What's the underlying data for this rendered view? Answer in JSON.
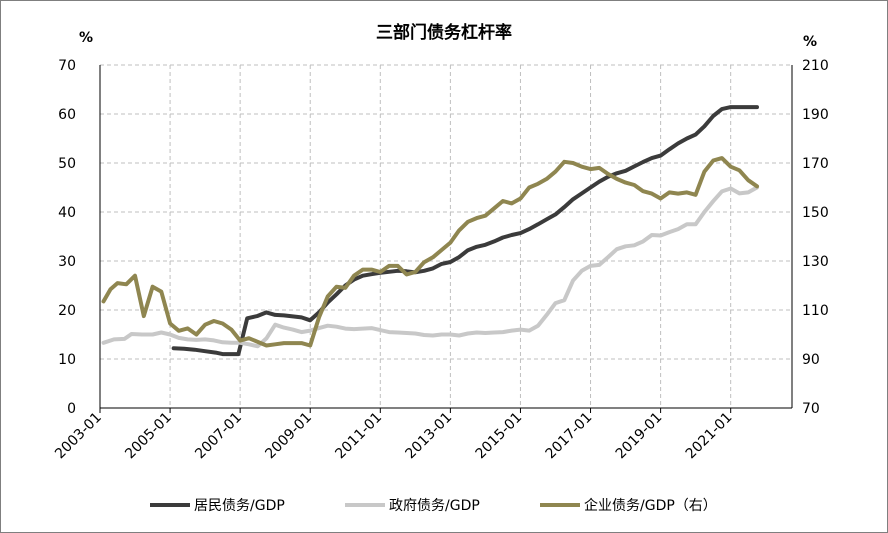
{
  "chart_data": {
    "type": "line",
    "title": "三部门债务杠杆率",
    "y_left_unit": "%",
    "y_right_unit": "%",
    "y_left_lim": [
      0,
      70
    ],
    "y_left_ticks": [
      "0",
      "10",
      "20",
      "30",
      "40",
      "50",
      "60",
      "70"
    ],
    "y_right_lim": [
      70,
      210
    ],
    "y_right_ticks": [
      "70",
      "90",
      "110",
      "130",
      "150",
      "170",
      "190",
      "210"
    ],
    "x_lim": [
      2003.0,
      2022.75
    ],
    "x_ticks": [
      {
        "value": 2003.0,
        "label": "2003-01"
      },
      {
        "value": 2005.0,
        "label": "2005-01"
      },
      {
        "value": 2007.0,
        "label": "2007-01"
      },
      {
        "value": 2009.0,
        "label": "2009-01"
      },
      {
        "value": 2011.0,
        "label": "2011-01"
      },
      {
        "value": 2013.0,
        "label": "2013-01"
      },
      {
        "value": 2015.0,
        "label": "2015-01"
      },
      {
        "value": 2017.0,
        "label": "2017-01"
      },
      {
        "value": 2019.0,
        "label": "2019-01"
      },
      {
        "value": 2021.0,
        "label": "2021-01"
      }
    ],
    "grid": true,
    "legend_position": "bottom",
    "series": [
      {
        "name": "居民债务/GDP",
        "axis": "left",
        "color": "#3b3b3b",
        "width": 4,
        "points": [
          [
            2005.1,
            12.2
          ],
          [
            2005.4,
            12.1
          ],
          [
            2005.7,
            11.9
          ],
          [
            2006.0,
            11.6
          ],
          [
            2006.3,
            11.3
          ],
          [
            2006.5,
            11.0
          ],
          [
            2006.8,
            11.0
          ],
          [
            2006.95,
            11.0
          ],
          [
            2007.2,
            18.3
          ],
          [
            2007.5,
            18.8
          ],
          [
            2007.75,
            19.5
          ],
          [
            2008.0,
            19.0
          ],
          [
            2008.25,
            18.9
          ],
          [
            2008.5,
            18.7
          ],
          [
            2008.75,
            18.5
          ],
          [
            2009.0,
            17.9
          ],
          [
            2009.25,
            19.5
          ],
          [
            2009.5,
            21.5
          ],
          [
            2009.75,
            23.2
          ],
          [
            2010.0,
            25.0
          ],
          [
            2010.25,
            26.2
          ],
          [
            2010.5,
            27.0
          ],
          [
            2010.75,
            27.3
          ],
          [
            2011.0,
            27.6
          ],
          [
            2011.25,
            27.8
          ],
          [
            2011.5,
            28.0
          ],
          [
            2011.75,
            27.9
          ],
          [
            2012.0,
            27.7
          ],
          [
            2012.25,
            28.0
          ],
          [
            2012.5,
            28.5
          ],
          [
            2012.75,
            29.4
          ],
          [
            2013.0,
            29.8
          ],
          [
            2013.25,
            30.8
          ],
          [
            2013.5,
            32.2
          ],
          [
            2013.75,
            32.9
          ],
          [
            2014.0,
            33.3
          ],
          [
            2014.25,
            34.0
          ],
          [
            2014.5,
            34.8
          ],
          [
            2014.75,
            35.3
          ],
          [
            2015.0,
            35.7
          ],
          [
            2015.25,
            36.5
          ],
          [
            2015.5,
            37.5
          ],
          [
            2015.75,
            38.5
          ],
          [
            2016.0,
            39.5
          ],
          [
            2016.25,
            41.0
          ],
          [
            2016.5,
            42.6
          ],
          [
            2016.75,
            43.8
          ],
          [
            2017.0,
            45.0
          ],
          [
            2017.25,
            46.2
          ],
          [
            2017.5,
            47.2
          ],
          [
            2017.75,
            47.9
          ],
          [
            2018.0,
            48.4
          ],
          [
            2018.25,
            49.3
          ],
          [
            2018.5,
            50.2
          ],
          [
            2018.75,
            51.0
          ],
          [
            2019.0,
            51.5
          ],
          [
            2019.25,
            52.8
          ],
          [
            2019.5,
            54.0
          ],
          [
            2019.75,
            55.0
          ],
          [
            2020.0,
            55.8
          ],
          [
            2020.25,
            57.5
          ],
          [
            2020.5,
            59.6
          ],
          [
            2020.75,
            61.0
          ],
          [
            2021.0,
            61.4
          ],
          [
            2021.25,
            61.4
          ],
          [
            2021.5,
            61.4
          ],
          [
            2021.75,
            61.4
          ]
        ]
      },
      {
        "name": "政府债务/GDP",
        "axis": "left",
        "color": "#c8c8c8",
        "width": 4,
        "points": [
          [
            2003.1,
            13.3
          ],
          [
            2003.4,
            14.0
          ],
          [
            2003.7,
            14.1
          ],
          [
            2003.9,
            15.1
          ],
          [
            2004.2,
            15.0
          ],
          [
            2004.5,
            15.0
          ],
          [
            2004.75,
            15.4
          ],
          [
            2005.0,
            15.0
          ],
          [
            2005.25,
            14.3
          ],
          [
            2005.5,
            14.0
          ],
          [
            2005.75,
            13.9
          ],
          [
            2006.0,
            14.0
          ],
          [
            2006.25,
            13.8
          ],
          [
            2006.5,
            13.4
          ],
          [
            2006.75,
            13.3
          ],
          [
            2007.0,
            13.3
          ],
          [
            2007.25,
            13.0
          ],
          [
            2007.5,
            12.6
          ],
          [
            2007.75,
            14.2
          ],
          [
            2008.0,
            17.0
          ],
          [
            2008.25,
            16.4
          ],
          [
            2008.5,
            16.0
          ],
          [
            2008.75,
            15.5
          ],
          [
            2009.0,
            15.8
          ],
          [
            2009.25,
            16.3
          ],
          [
            2009.5,
            16.8
          ],
          [
            2009.75,
            16.6
          ],
          [
            2010.0,
            16.2
          ],
          [
            2010.25,
            16.1
          ],
          [
            2010.5,
            16.2
          ],
          [
            2010.75,
            16.3
          ],
          [
            2011.0,
            15.9
          ],
          [
            2011.25,
            15.5
          ],
          [
            2011.5,
            15.4
          ],
          [
            2011.75,
            15.3
          ],
          [
            2012.0,
            15.2
          ],
          [
            2012.25,
            14.9
          ],
          [
            2012.5,
            14.8
          ],
          [
            2012.75,
            15.0
          ],
          [
            2013.0,
            15.0
          ],
          [
            2013.25,
            14.8
          ],
          [
            2013.5,
            15.2
          ],
          [
            2013.75,
            15.4
          ],
          [
            2014.0,
            15.3
          ],
          [
            2014.25,
            15.4
          ],
          [
            2014.5,
            15.5
          ],
          [
            2014.75,
            15.8
          ],
          [
            2015.0,
            16.0
          ],
          [
            2015.25,
            15.8
          ],
          [
            2015.5,
            16.8
          ],
          [
            2015.75,
            19.0
          ],
          [
            2016.0,
            21.4
          ],
          [
            2016.25,
            22.0
          ],
          [
            2016.5,
            26.0
          ],
          [
            2016.75,
            28.0
          ],
          [
            2017.0,
            29.0
          ],
          [
            2017.25,
            29.2
          ],
          [
            2017.5,
            30.8
          ],
          [
            2017.75,
            32.4
          ],
          [
            2018.0,
            33.0
          ],
          [
            2018.25,
            33.2
          ],
          [
            2018.5,
            34.0
          ],
          [
            2018.75,
            35.3
          ],
          [
            2019.0,
            35.2
          ],
          [
            2019.25,
            35.9
          ],
          [
            2019.5,
            36.5
          ],
          [
            2019.75,
            37.5
          ],
          [
            2020.0,
            37.5
          ],
          [
            2020.25,
            40.0
          ],
          [
            2020.5,
            42.2
          ],
          [
            2020.75,
            44.2
          ],
          [
            2021.0,
            44.8
          ],
          [
            2021.25,
            43.8
          ],
          [
            2021.5,
            44.0
          ],
          [
            2021.75,
            45.0
          ]
        ]
      },
      {
        "name": "企业债务/GDP（右）",
        "axis": "right",
        "color": "#8f8650",
        "width": 4,
        "points": [
          [
            2003.1,
            113.5
          ],
          [
            2003.3,
            118.5
          ],
          [
            2003.5,
            121.0
          ],
          [
            2003.75,
            120.5
          ],
          [
            2004.0,
            124.0
          ],
          [
            2004.25,
            107.5
          ],
          [
            2004.5,
            119.5
          ],
          [
            2004.75,
            117.5
          ],
          [
            2005.0,
            104.5
          ],
          [
            2005.25,
            101.5
          ],
          [
            2005.5,
            102.5
          ],
          [
            2005.75,
            100.0
          ],
          [
            2006.0,
            104.0
          ],
          [
            2006.25,
            105.5
          ],
          [
            2006.5,
            104.5
          ],
          [
            2006.75,
            102.0
          ],
          [
            2007.0,
            97.5
          ],
          [
            2007.25,
            98.5
          ],
          [
            2007.5,
            97.0
          ],
          [
            2007.75,
            95.5
          ],
          [
            2008.0,
            96.0
          ],
          [
            2008.25,
            96.5
          ],
          [
            2008.5,
            96.5
          ],
          [
            2008.75,
            96.5
          ],
          [
            2009.0,
            95.5
          ],
          [
            2009.25,
            107.0
          ],
          [
            2009.5,
            115.5
          ],
          [
            2009.75,
            119.5
          ],
          [
            2010.0,
            119.0
          ],
          [
            2010.25,
            124.0
          ],
          [
            2010.5,
            126.5
          ],
          [
            2010.75,
            126.5
          ],
          [
            2011.0,
            125.5
          ],
          [
            2011.25,
            128.0
          ],
          [
            2011.5,
            128.0
          ],
          [
            2011.75,
            124.5
          ],
          [
            2012.0,
            125.5
          ],
          [
            2012.25,
            129.5
          ],
          [
            2012.5,
            131.5
          ],
          [
            2012.75,
            134.5
          ],
          [
            2013.0,
            137.5
          ],
          [
            2013.25,
            142.5
          ],
          [
            2013.5,
            146.0
          ],
          [
            2013.75,
            147.5
          ],
          [
            2014.0,
            148.5
          ],
          [
            2014.25,
            151.5
          ],
          [
            2014.5,
            154.5
          ],
          [
            2014.75,
            153.5
          ],
          [
            2015.0,
            155.5
          ],
          [
            2015.25,
            160.0
          ],
          [
            2015.5,
            161.5
          ],
          [
            2015.75,
            163.5
          ],
          [
            2016.0,
            166.5
          ],
          [
            2016.25,
            170.5
          ],
          [
            2016.5,
            170.0
          ],
          [
            2016.75,
            168.5
          ],
          [
            2017.0,
            167.5
          ],
          [
            2017.25,
            168.0
          ],
          [
            2017.5,
            165.5
          ],
          [
            2017.75,
            163.5
          ],
          [
            2018.0,
            162.0
          ],
          [
            2018.25,
            161.0
          ],
          [
            2018.5,
            158.5
          ],
          [
            2018.75,
            157.5
          ],
          [
            2019.0,
            155.5
          ],
          [
            2019.25,
            158.0
          ],
          [
            2019.5,
            157.5
          ],
          [
            2019.75,
            158.0
          ],
          [
            2020.0,
            157.0
          ],
          [
            2020.25,
            166.5
          ],
          [
            2020.5,
            171.0
          ],
          [
            2020.75,
            172.0
          ],
          [
            2021.0,
            168.5
          ],
          [
            2021.25,
            167.0
          ],
          [
            2021.5,
            163.0
          ],
          [
            2021.75,
            160.5
          ]
        ]
      }
    ]
  }
}
